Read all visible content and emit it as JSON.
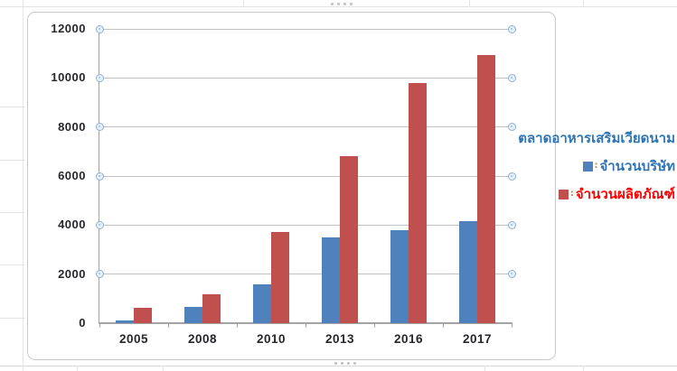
{
  "chart_data": {
    "type": "bar",
    "title": "ตลาดอาหารเสริมเวียดนาม",
    "categories": [
      "2005",
      "2008",
      "2010",
      "2013",
      "2016",
      "2017"
    ],
    "series": [
      {
        "name": "จำนวนบริษัท",
        "color": "#4F81BD",
        "label_color": "#2E74B5",
        "values": [
          120,
          650,
          1600,
          3500,
          3800,
          4150
        ]
      },
      {
        "name": "จำนวนผลิตภัณฑ์",
        "color": "#C0504D",
        "label_color": "#FF0000",
        "values": [
          620,
          1180,
          3720,
          6820,
          9780,
          10920
        ]
      }
    ],
    "xlabel": "",
    "ylabel": "",
    "ylim": [
      0,
      12000
    ],
    "yticks": [
      0,
      2000,
      4000,
      6000,
      8000,
      10000,
      12000
    ],
    "grid": true,
    "legend_position": "right",
    "legend_separator": ":",
    "title_color": "#2E74B5"
  }
}
